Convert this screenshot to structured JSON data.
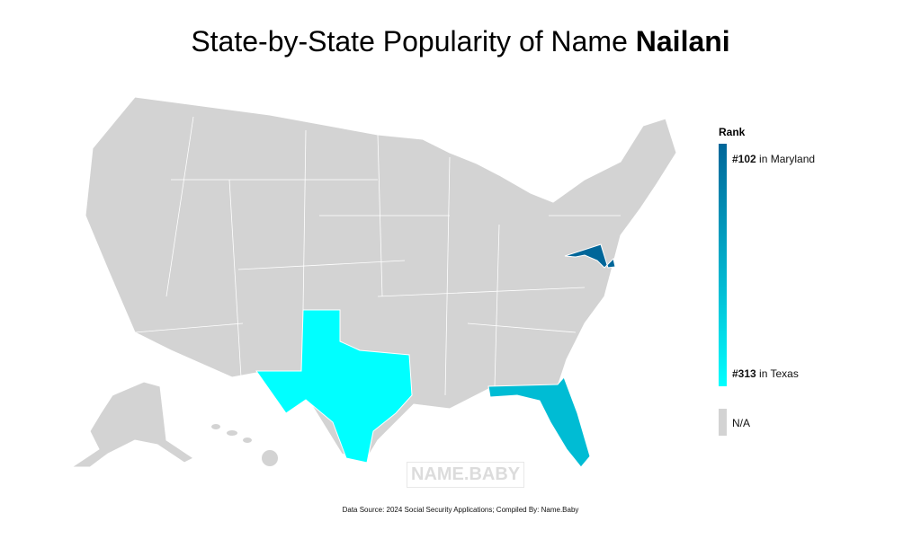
{
  "title": {
    "prefix": "State-by-State Popularity of Name ",
    "name": "Nailani"
  },
  "legend": {
    "title": "Rank",
    "top": {
      "rank": "#102",
      "text": " in Maryland"
    },
    "bottom": {
      "rank": "#313",
      "text": " in Texas"
    },
    "na": "N/A"
  },
  "states": [
    {
      "name": "Maryland",
      "rank": 102,
      "color": "#006699"
    },
    {
      "name": "Texas",
      "rank": 313,
      "color": "#00ffff"
    },
    {
      "name": "Florida",
      "color": "#00bcd4"
    }
  ],
  "colors": {
    "na": "#d3d3d3",
    "high": "#006699",
    "low": "#00ffff"
  },
  "watermark": "NAME.BABY",
  "footer": "Data Source: 2024 Social Security Applications; Compiled By: Name.Baby"
}
